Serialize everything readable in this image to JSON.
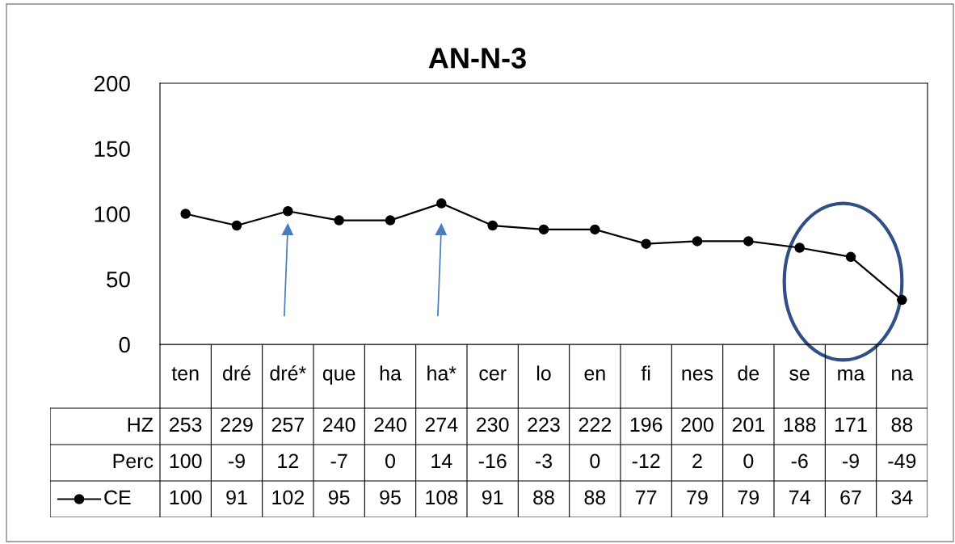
{
  "chart_data": {
    "type": "line",
    "title": "AN-N-3",
    "categories": [
      "ten",
      "dré",
      "dré*",
      "que",
      "ha",
      "ha*",
      "cer",
      "lo",
      "en",
      "fi",
      "nes",
      "de",
      "se",
      "ma",
      "na"
    ],
    "series": [
      {
        "name": "HZ",
        "values": [
          null,
          null,
          null,
          null,
          null,
          null,
          null,
          null,
          null,
          null,
          null,
          null,
          null,
          null,
          null
        ],
        "value_labels": [
          "253",
          "229",
          "257",
          "240",
          "240",
          "274",
          "230",
          "223",
          "222",
          "196",
          "200",
          "201",
          "188",
          "171",
          "88"
        ]
      },
      {
        "name": "Perc",
        "values": [
          null,
          null,
          null,
          null,
          null,
          null,
          null,
          null,
          null,
          null,
          null,
          null,
          null,
          null,
          null
        ],
        "value_labels": [
          "100",
          "-9",
          "12",
          "-7",
          "0",
          "14",
          "-16",
          "-3",
          "0",
          "-12",
          "2",
          "0",
          "-6",
          "-9",
          "-49"
        ]
      },
      {
        "name": "CE",
        "color": "#000000",
        "values": [
          100,
          91,
          102,
          95,
          95,
          108,
          91,
          88,
          88,
          77,
          79,
          79,
          74,
          67,
          34
        ]
      }
    ],
    "ylim": [
      0,
      200
    ],
    "yticks": [
      0,
      50,
      100,
      150,
      200
    ],
    "grid": false,
    "marker": "circle",
    "line_style": "solid",
    "legend": "bottom",
    "data_labels": true
  }
}
